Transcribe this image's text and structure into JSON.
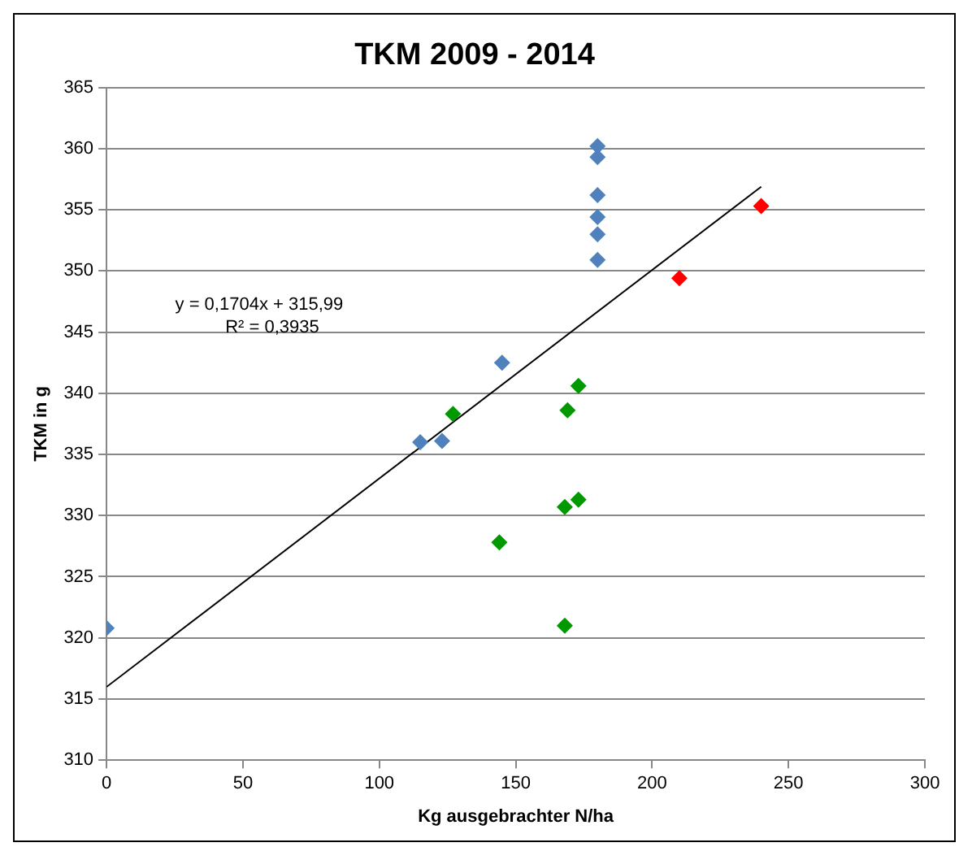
{
  "chart_data": {
    "type": "scatter",
    "title": "TKM 2009 - 2014",
    "xlabel": "Kg ausgebrachter N/ha",
    "ylabel": "TKM in g",
    "xlim": [
      0,
      300
    ],
    "xticks": [
      0,
      50,
      100,
      150,
      200,
      250,
      300
    ],
    "ylim": [
      310,
      365
    ],
    "yticks": [
      310,
      315,
      320,
      325,
      330,
      335,
      340,
      345,
      350,
      355,
      360,
      365
    ],
    "grid": "y",
    "legend": false,
    "marker": "diamond",
    "annotations": [
      "y = 0,1704x + 315,99",
      "R² = 0,3935"
    ],
    "series": [
      {
        "color": "#4f81bd",
        "x": [
          0,
          115,
          123,
          145,
          180,
          180,
          180,
          180,
          180,
          180
        ],
        "values": [
          320.8,
          336.0,
          336.1,
          342.5,
          360.2,
          359.3,
          356.2,
          354.4,
          353.0,
          350.9
        ]
      },
      {
        "color": "#009900",
        "x": [
          127,
          144,
          168,
          168,
          169,
          173,
          173
        ],
        "values": [
          338.3,
          327.8,
          321.0,
          330.7,
          338.6,
          340.6,
          331.3
        ]
      },
      {
        "color": "#ff0000",
        "x": [
          210,
          240
        ],
        "values": [
          349.4,
          355.3
        ]
      },
      {
        "type": "line",
        "color": "#000000",
        "marker": "none",
        "x": [
          0,
          240
        ],
        "values": [
          315.99,
          356.886
        ]
      }
    ]
  }
}
